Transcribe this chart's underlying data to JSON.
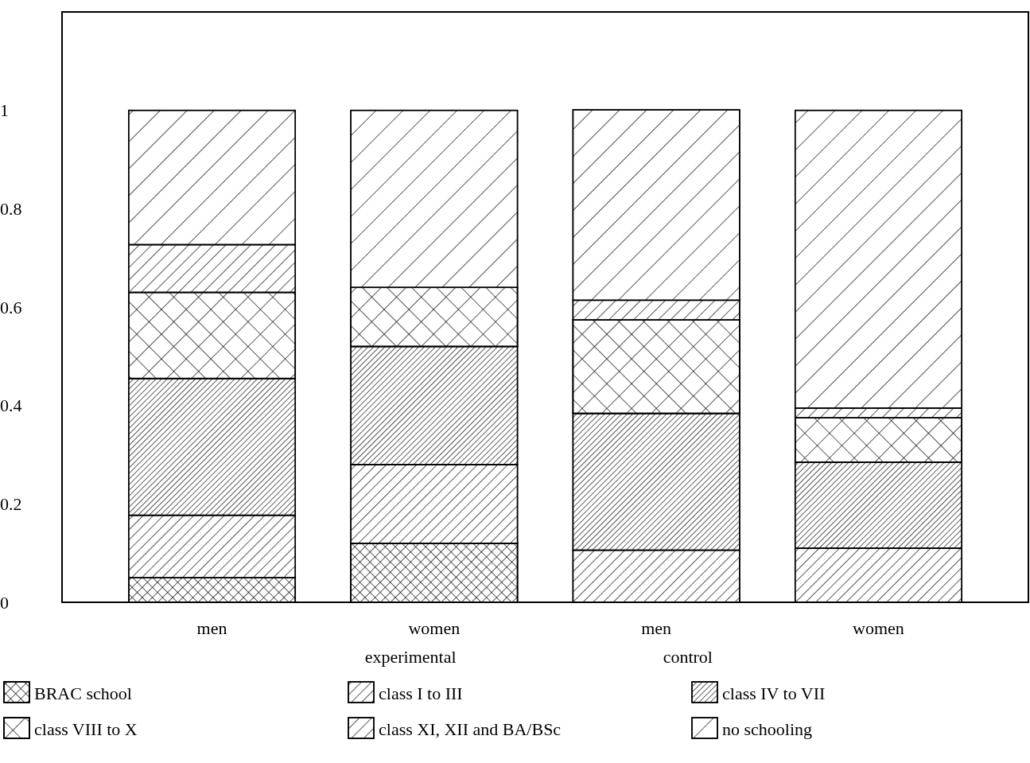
{
  "chart_data": {
    "type": "bar",
    "stacked": true,
    "categories": [
      "men",
      "women",
      "men",
      "women"
    ],
    "annotations": [
      "experimental",
      "control"
    ],
    "ylim": [
      0,
      1.2
    ],
    "yticks": [
      0,
      0.2,
      0.4,
      0.6,
      0.8,
      1
    ],
    "legend": "bottom",
    "grid": false,
    "series": [
      {
        "name": "BRAC school",
        "color": "#000000",
        "values": [
          0.05,
          0.12,
          0,
          0
        ]
      },
      {
        "name": "class I to III",
        "color": "#000000",
        "values": [
          0.127,
          0.16,
          0.106,
          0.11
        ]
      },
      {
        "name": "class IV to VII",
        "color": "#000000",
        "values": [
          0.278,
          0.24,
          0.278,
          0.175
        ]
      },
      {
        "name": "class VIII to X",
        "color": "#000000",
        "values": [
          0.175,
          0.12,
          0.19,
          0.09
        ]
      },
      {
        "name": "class XI, XII and BA/BSc",
        "color": "#000000",
        "values": [
          0.097,
          0,
          0.04,
          0.02
        ]
      },
      {
        "name": "no schooling",
        "color": "#000000",
        "values": [
          0.273,
          0.36,
          0.387,
          0.605
        ]
      }
    ]
  }
}
